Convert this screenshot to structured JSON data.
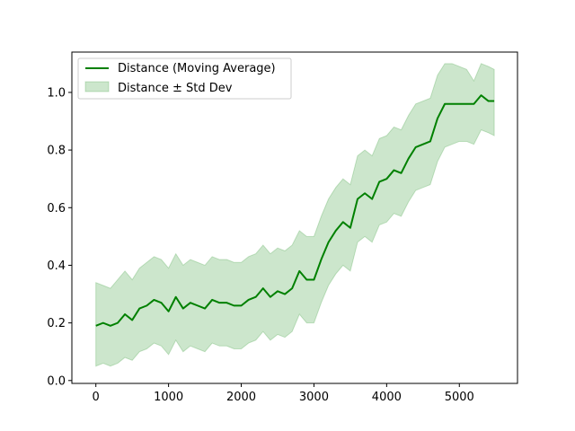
{
  "chart_data": {
    "type": "line",
    "title": "",
    "xlabel": "",
    "ylabel": "",
    "xlim": [
      -330,
      5800
    ],
    "ylim": [
      -0.01,
      1.14
    ],
    "grid": false,
    "legend_position": "top-left",
    "xticks": [
      0,
      1000,
      2000,
      3000,
      4000,
      5000
    ],
    "yticks": [
      0.0,
      0.2,
      0.4,
      0.6,
      0.8,
      1.0
    ],
    "xtick_labels": [
      "0",
      "1000",
      "2000",
      "3000",
      "4000",
      "5000"
    ],
    "ytick_labels": [
      "0.0",
      "0.2",
      "0.4",
      "0.6",
      "0.8",
      "1.0"
    ],
    "series": [
      {
        "name": "Distance (Moving Average)",
        "color": "#008000",
        "x": [
          0,
          100,
          200,
          300,
          400,
          500,
          600,
          700,
          800,
          900,
          1000,
          1100,
          1200,
          1300,
          1400,
          1500,
          1600,
          1700,
          1800,
          1900,
          2000,
          2100,
          2200,
          2300,
          2400,
          2500,
          2600,
          2700,
          2800,
          2900,
          3000,
          3100,
          3200,
          3300,
          3400,
          3500,
          3600,
          3700,
          3800,
          3900,
          4000,
          4100,
          4200,
          4300,
          4400,
          4500,
          4600,
          4700,
          4800,
          4900,
          5000,
          5100,
          5200,
          5300,
          5400,
          5480
        ],
        "y": [
          0.19,
          0.2,
          0.19,
          0.2,
          0.23,
          0.21,
          0.25,
          0.26,
          0.28,
          0.27,
          0.24,
          0.29,
          0.25,
          0.27,
          0.26,
          0.25,
          0.28,
          0.27,
          0.27,
          0.26,
          0.26,
          0.28,
          0.29,
          0.32,
          0.29,
          0.31,
          0.3,
          0.32,
          0.38,
          0.35,
          0.35,
          0.42,
          0.48,
          0.52,
          0.55,
          0.53,
          0.63,
          0.65,
          0.63,
          0.69,
          0.7,
          0.73,
          0.72,
          0.77,
          0.81,
          0.82,
          0.83,
          0.91,
          0.96,
          0.96,
          0.96,
          0.96,
          0.96,
          0.99,
          0.97,
          0.97
        ]
      },
      {
        "name": "Distance ± Std Dev",
        "color": "#008000",
        "type": "band",
        "x": [
          0,
          100,
          200,
          300,
          400,
          500,
          600,
          700,
          800,
          900,
          1000,
          1100,
          1200,
          1300,
          1400,
          1500,
          1600,
          1700,
          1800,
          1900,
          2000,
          2100,
          2200,
          2300,
          2400,
          2500,
          2600,
          2700,
          2800,
          2900,
          3000,
          3100,
          3200,
          3300,
          3400,
          3500,
          3600,
          3700,
          3800,
          3900,
          4000,
          4100,
          4200,
          4300,
          4400,
          4500,
          4600,
          4700,
          4800,
          4900,
          5000,
          5100,
          5200,
          5300,
          5400,
          5480
        ],
        "upper": [
          0.34,
          0.33,
          0.32,
          0.35,
          0.38,
          0.35,
          0.39,
          0.41,
          0.43,
          0.42,
          0.39,
          0.44,
          0.4,
          0.42,
          0.41,
          0.4,
          0.43,
          0.42,
          0.42,
          0.41,
          0.41,
          0.43,
          0.44,
          0.47,
          0.44,
          0.46,
          0.45,
          0.47,
          0.52,
          0.5,
          0.5,
          0.57,
          0.63,
          0.67,
          0.7,
          0.68,
          0.78,
          0.8,
          0.78,
          0.84,
          0.85,
          0.88,
          0.87,
          0.92,
          0.96,
          0.97,
          0.98,
          1.06,
          1.1,
          1.1,
          1.09,
          1.08,
          1.04,
          1.1,
          1.09,
          1.08
        ],
        "lower": [
          0.05,
          0.06,
          0.05,
          0.06,
          0.08,
          0.07,
          0.1,
          0.11,
          0.13,
          0.12,
          0.09,
          0.14,
          0.1,
          0.12,
          0.11,
          0.1,
          0.13,
          0.12,
          0.12,
          0.11,
          0.11,
          0.13,
          0.14,
          0.17,
          0.14,
          0.16,
          0.15,
          0.17,
          0.23,
          0.2,
          0.2,
          0.27,
          0.33,
          0.37,
          0.4,
          0.38,
          0.48,
          0.5,
          0.48,
          0.54,
          0.55,
          0.58,
          0.57,
          0.62,
          0.66,
          0.67,
          0.68,
          0.76,
          0.81,
          0.82,
          0.83,
          0.83,
          0.82,
          0.87,
          0.86,
          0.85
        ]
      }
    ]
  }
}
